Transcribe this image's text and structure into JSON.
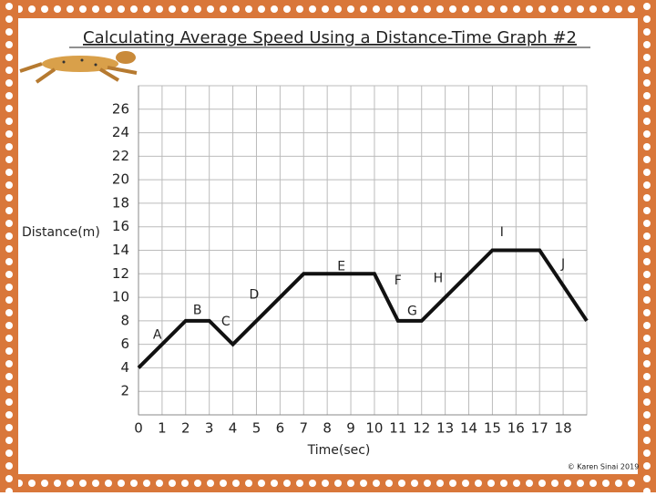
{
  "chart_data": {
    "type": "line",
    "title": "Calculating Average Speed Using a Distance-Time Graph #2",
    "x_label": "Time(sec)",
    "y_label": "Distance(m)",
    "x": [
      0,
      2,
      3,
      4,
      7,
      10,
      11,
      12,
      15,
      17,
      19
    ],
    "series": [
      {
        "color": "#111111",
        "values": [
          4,
          8,
          8,
          6,
          12,
          12,
          8,
          8,
          14,
          14,
          8
        ]
      }
    ],
    "xlim": [
      0,
      19
    ],
    "xticks": [
      0,
      1,
      2,
      3,
      4,
      5,
      6,
      7,
      8,
      9,
      10,
      11,
      12,
      13,
      14,
      15,
      16,
      17,
      18
    ],
    "ylim": [
      0,
      28
    ],
    "yticks": [
      2,
      4,
      6,
      8,
      10,
      12,
      14,
      16,
      18,
      20,
      22,
      24,
      26
    ],
    "grid": true,
    "annotations": [
      "A",
      "B",
      "C",
      "D",
      "E",
      "F",
      "G",
      "H",
      "I",
      "J"
    ],
    "credit": "© Karen Sinai 2019"
  }
}
